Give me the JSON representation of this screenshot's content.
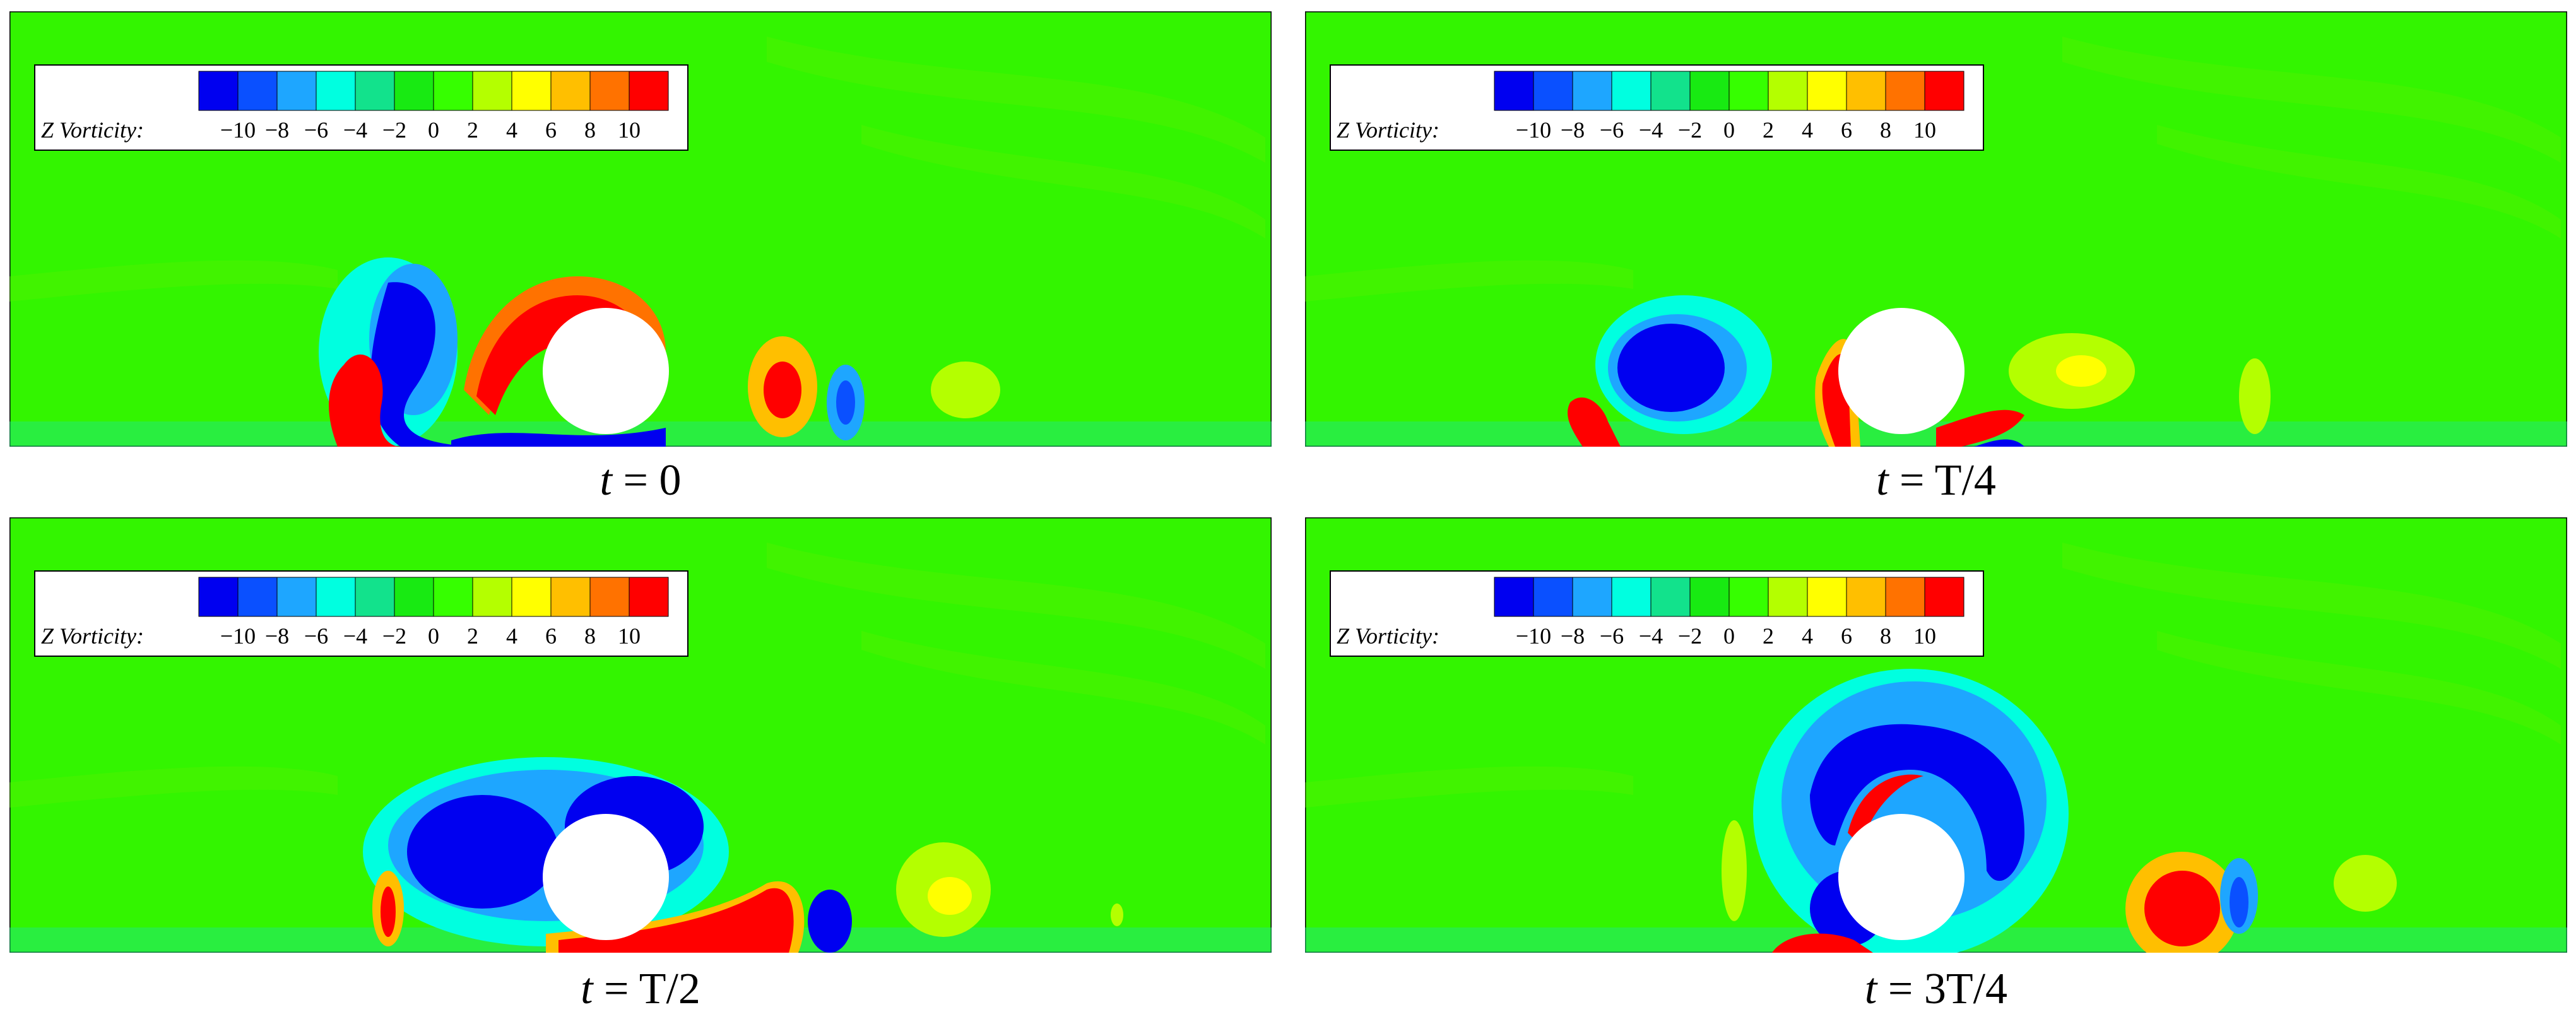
{
  "legend": {
    "title": "Z Vorticity:",
    "ticks": [
      "−10",
      "−8",
      "−6",
      "−4",
      "−2",
      "0",
      "2",
      "4",
      "6",
      "8",
      "10"
    ],
    "colors": [
      "#0000f0",
      "#0a50ff",
      "#1ea6ff",
      "#00ffe0",
      "#12e28c",
      "#18ea12",
      "#36ff00",
      "#b4ff00",
      "#ffff00",
      "#ffbf00",
      "#ff7200",
      "#ff0000"
    ]
  },
  "panels": [
    {
      "id": "t0",
      "caption_prefix": "t",
      "caption_rest": " = 0"
    },
    {
      "id": "tT4",
      "caption_prefix": "t",
      "caption_rest": " = T/4"
    },
    {
      "id": "tT2",
      "caption_prefix": "t",
      "caption_rest": " = T/2"
    },
    {
      "id": "t3T4",
      "caption_prefix": "t",
      "caption_rest": " = 3T/4"
    }
  ],
  "colors": {
    "background_field": "#33f500",
    "field_light": "#5cf000",
    "field_teal": "#20e880"
  }
}
